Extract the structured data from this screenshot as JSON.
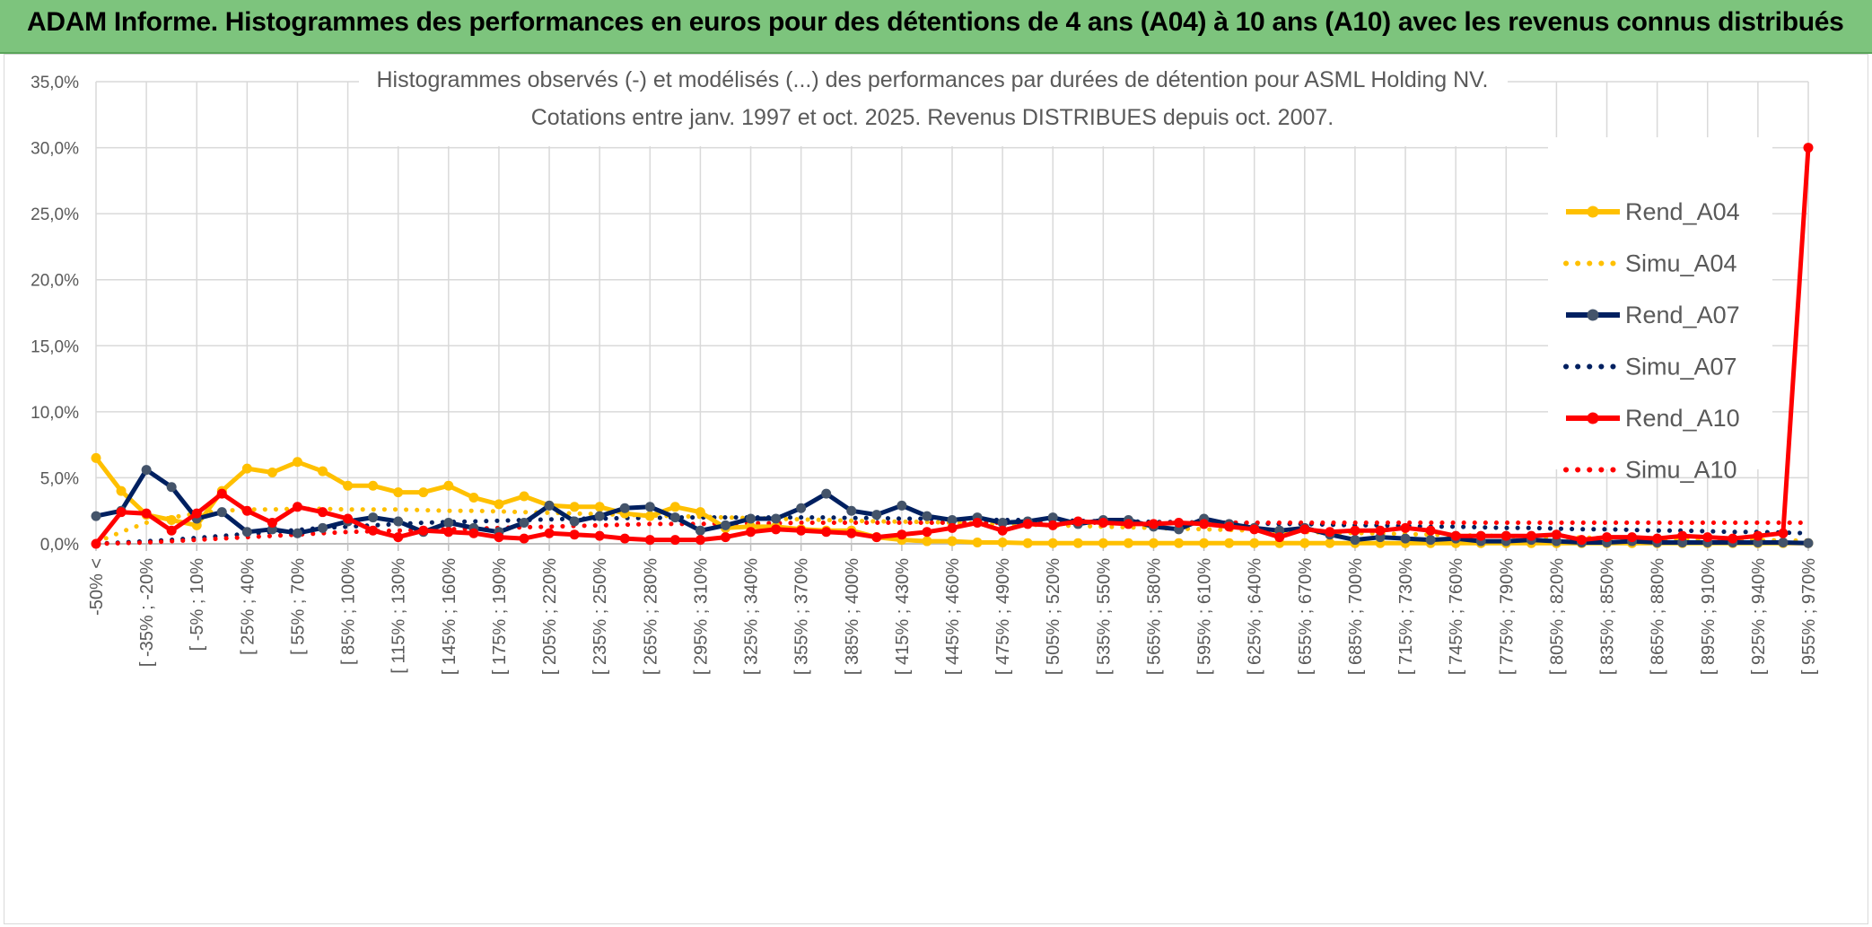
{
  "banner": {
    "title": "ADAM Informe. Histogrammes des performances en euros pour des détentions de 4 ans (A04) à 10 ans (A10) avec les revenus connus distribués"
  },
  "colors": {
    "banner_bg": "#7dc47d",
    "rend_a04": "#ffc000",
    "simu_a04": "#ffc000",
    "rend_a07": "#002060",
    "simu_a07": "#002060",
    "rend_a10": "#ff0000",
    "simu_a10": "#ff0000",
    "grid": "#d9d9d9",
    "marker_a07": "#44546a"
  },
  "chart_data": {
    "type": "line",
    "title_lines": [
      "Histogrammes observés (-) et modélisés (...) des performances par durées de détention pour ASML Holding NV.",
      "Cotations entre janv. 1997 et oct. 2025. Revenus DISTRIBUES depuis oct. 2007."
    ],
    "y_ticks": [
      "0,0%",
      "5,0%",
      "10,0%",
      "15,0%",
      "20,0%",
      "25,0%",
      "30,0%",
      "35,0%"
    ],
    "ylim": [
      0,
      35
    ],
    "x_tick_labels": [
      "-50% <",
      "[ -35% ; -20%",
      "[ -5% ; 10%",
      "[ 25% ; 40%",
      "[ 55% ; 70%",
      "[ 85% ; 100%",
      "[ 115% ; 130%",
      "[ 145% ; 160%",
      "[ 175% ; 190%",
      "[ 205% ; 220%",
      "[ 235% ; 250%",
      "[ 265% ; 280%",
      "[ 295% ; 310%",
      "[ 325% ; 340%",
      "[ 355% ; 370%",
      "[ 385% ; 400%",
      "[ 415% ; 430%",
      "[ 445% ; 460%",
      "[ 475% ; 490%",
      "[ 505% ; 520%",
      "[ 535% ; 550%",
      "[ 565% ; 580%",
      "[ 595% ; 610%",
      "[ 625% ; 640%",
      "[ 655% ; 670%",
      "[ 685% ; 700%",
      "[ 715% ; 730%",
      "[ 745% ; 760%",
      "[ 775% ; 790%",
      "[ 805% ; 820%",
      "[ 835% ; 850%",
      "[ 865% ; 880%",
      "[ 895% ; 910%",
      "[ 925% ; 940%",
      "[ 955% ; 970%"
    ],
    "n_points": 69,
    "legend_position": "right",
    "grid": true,
    "series": [
      {
        "name": "Rend_A04",
        "style": "solid-marker",
        "values": [
          6.5,
          4.0,
          2.2,
          1.8,
          1.4,
          4.0,
          5.7,
          5.4,
          6.2,
          5.5,
          4.4,
          4.4,
          3.9,
          3.9,
          4.4,
          3.5,
          3.0,
          3.6,
          2.9,
          2.8,
          2.8,
          2.3,
          2.1,
          2.8,
          2.4,
          1.2,
          1.3,
          1.3,
          1.1,
          1.0,
          1.0,
          0.5,
          0.3,
          0.2,
          0.2,
          0.1,
          0.1,
          0.05,
          0.05,
          0.05,
          0.05,
          0.05,
          0.05,
          0.05,
          0.05,
          0.05,
          0.05,
          0.05,
          0.05,
          0.05,
          0.05,
          0.05,
          0.05,
          0.05,
          0.05,
          0.05,
          0.05,
          0.05,
          0.05,
          0.05,
          0.05,
          0.05,
          0.05,
          0.05,
          0.05,
          0.05,
          0.05,
          0.05,
          0.05
        ]
      },
      {
        "name": "Simu_A04",
        "style": "dotted",
        "values": [
          0.1,
          0.9,
          1.6,
          2.0,
          2.3,
          2.5,
          2.6,
          2.6,
          2.65,
          2.65,
          2.6,
          2.6,
          2.6,
          2.55,
          2.5,
          2.5,
          2.45,
          2.4,
          2.35,
          2.3,
          2.25,
          2.2,
          2.15,
          2.1,
          2.05,
          2.0,
          1.95,
          1.9,
          1.85,
          1.8,
          1.75,
          1.7,
          1.68,
          1.65,
          1.6,
          1.55,
          1.5,
          1.45,
          1.4,
          1.35,
          1.3,
          1.25,
          1.2,
          1.15,
          1.1,
          1.05,
          1.0,
          0.95,
          0.9,
          0.85,
          0.82,
          0.78,
          0.74,
          0.7,
          0.66,
          0.62,
          0.58,
          0.54,
          0.5,
          0.47,
          0.44,
          0.41,
          0.38,
          0.35,
          0.32,
          0.3,
          0.28,
          0.26,
          0.24
        ]
      },
      {
        "name": "Rend_A07",
        "style": "solid-marker",
        "values": [
          2.1,
          2.5,
          5.6,
          4.3,
          1.9,
          2.4,
          0.9,
          1.1,
          0.8,
          1.2,
          1.7,
          2.0,
          1.7,
          0.9,
          1.6,
          1.2,
          0.9,
          1.6,
          2.9,
          1.7,
          2.1,
          2.7,
          2.8,
          2.0,
          1.0,
          1.4,
          1.9,
          1.9,
          2.7,
          3.8,
          2.5,
          2.2,
          2.9,
          2.1,
          1.8,
          2.0,
          1.6,
          1.7,
          2.0,
          1.5,
          1.8,
          1.8,
          1.3,
          1.1,
          1.9,
          1.5,
          1.2,
          1.0,
          1.2,
          0.7,
          0.3,
          0.5,
          0.4,
          0.3,
          0.4,
          0.2,
          0.2,
          0.3,
          0.2,
          0.1,
          0.1,
          0.2,
          0.1,
          0.1,
          0.1,
          0.1,
          0.1,
          0.1,
          0.05
        ]
      },
      {
        "name": "Simu_A07",
        "style": "dotted",
        "values": [
          0.0,
          0.1,
          0.2,
          0.3,
          0.45,
          0.6,
          0.75,
          0.9,
          1.05,
          1.2,
          1.3,
          1.4,
          1.5,
          1.6,
          1.65,
          1.7,
          1.75,
          1.8,
          1.85,
          1.9,
          1.9,
          1.95,
          1.95,
          2.0,
          2.0,
          2.0,
          2.0,
          2.0,
          2.0,
          2.0,
          1.95,
          1.95,
          1.9,
          1.9,
          1.85,
          1.85,
          1.8,
          1.8,
          1.75,
          1.75,
          1.7,
          1.7,
          1.65,
          1.65,
          1.6,
          1.6,
          1.55,
          1.5,
          1.5,
          1.45,
          1.4,
          1.4,
          1.35,
          1.3,
          1.3,
          1.25,
          1.2,
          1.2,
          1.15,
          1.1,
          1.1,
          1.05,
          1.0,
          1.0,
          0.95,
          0.9,
          0.9,
          0.85,
          0.8
        ]
      },
      {
        "name": "Rend_A10",
        "style": "solid-marker",
        "values": [
          0.0,
          2.4,
          2.3,
          1.0,
          2.3,
          3.8,
          2.5,
          1.6,
          2.8,
          2.4,
          1.9,
          1.0,
          0.5,
          1.0,
          0.9,
          0.8,
          0.5,
          0.4,
          0.8,
          0.7,
          0.6,
          0.4,
          0.3,
          0.3,
          0.3,
          0.5,
          0.9,
          1.1,
          1.0,
          0.9,
          0.8,
          0.5,
          0.7,
          0.9,
          1.2,
          1.6,
          1.0,
          1.5,
          1.4,
          1.7,
          1.6,
          1.5,
          1.5,
          1.6,
          1.5,
          1.3,
          1.1,
          0.5,
          1.1,
          0.9,
          1.0,
          1.0,
          1.2,
          1.0,
          0.6,
          0.6,
          0.6,
          0.6,
          0.7,
          0.3,
          0.5,
          0.5,
          0.4,
          0.6,
          0.5,
          0.4,
          0.6,
          0.8,
          30.0
        ]
      },
      {
        "name": "Simu_A10",
        "style": "dotted",
        "values": [
          0.0,
          0.05,
          0.1,
          0.2,
          0.3,
          0.4,
          0.5,
          0.6,
          0.7,
          0.8,
          0.9,
          0.95,
          1.0,
          1.05,
          1.1,
          1.15,
          1.2,
          1.25,
          1.3,
          1.35,
          1.4,
          1.45,
          1.5,
          1.5,
          1.5,
          1.55,
          1.55,
          1.55,
          1.6,
          1.6,
          1.6,
          1.6,
          1.6,
          1.6,
          1.6,
          1.6,
          1.6,
          1.6,
          1.6,
          1.6,
          1.6,
          1.6,
          1.6,
          1.6,
          1.6,
          1.6,
          1.6,
          1.6,
          1.6,
          1.6,
          1.6,
          1.6,
          1.6,
          1.6,
          1.6,
          1.6,
          1.6,
          1.6,
          1.6,
          1.6,
          1.6,
          1.6,
          1.6,
          1.6,
          1.6,
          1.6,
          1.6,
          1.6,
          1.6
        ]
      }
    ]
  }
}
